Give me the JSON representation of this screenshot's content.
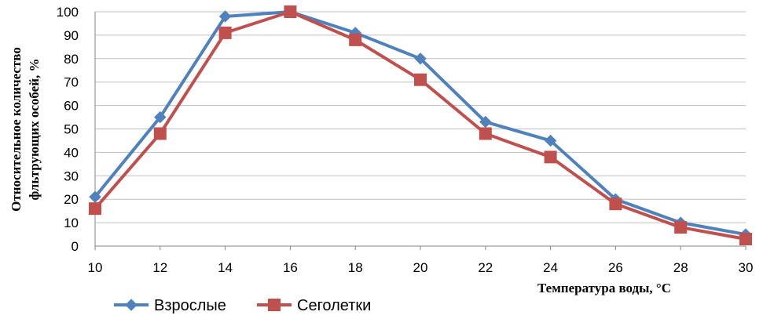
{
  "chart_data": {
    "type": "line",
    "xlabel": "Температура воды, °С",
    "ylabel_line1": "Относительное количество",
    "ylabel_line2": "фльтрующих особей, %",
    "x": [
      10,
      12,
      14,
      16,
      18,
      20,
      22,
      24,
      26,
      28,
      30
    ],
    "xlim": [
      10,
      30
    ],
    "ylim": [
      0,
      100
    ],
    "x_ticks": [
      "10",
      "12",
      "14",
      "16",
      "18",
      "20",
      "22",
      "24",
      "26",
      "28",
      "30"
    ],
    "y_ticks": [
      "0",
      "10",
      "20",
      "30",
      "40",
      "50",
      "60",
      "70",
      "80",
      "90",
      "100"
    ],
    "grid": true,
    "legend_position": "bottom-left",
    "series": [
      {
        "name": "Взрослые",
        "color": "#4F81BD",
        "marker": "diamond",
        "values": [
          21,
          55,
          98,
          100,
          91,
          80,
          53,
          45,
          20,
          10,
          5
        ]
      },
      {
        "name": "Сеголетки",
        "color": "#C0504D",
        "marker": "square",
        "values": [
          16,
          48,
          91,
          100,
          88,
          71,
          48,
          38,
          18,
          8,
          3
        ]
      }
    ]
  }
}
